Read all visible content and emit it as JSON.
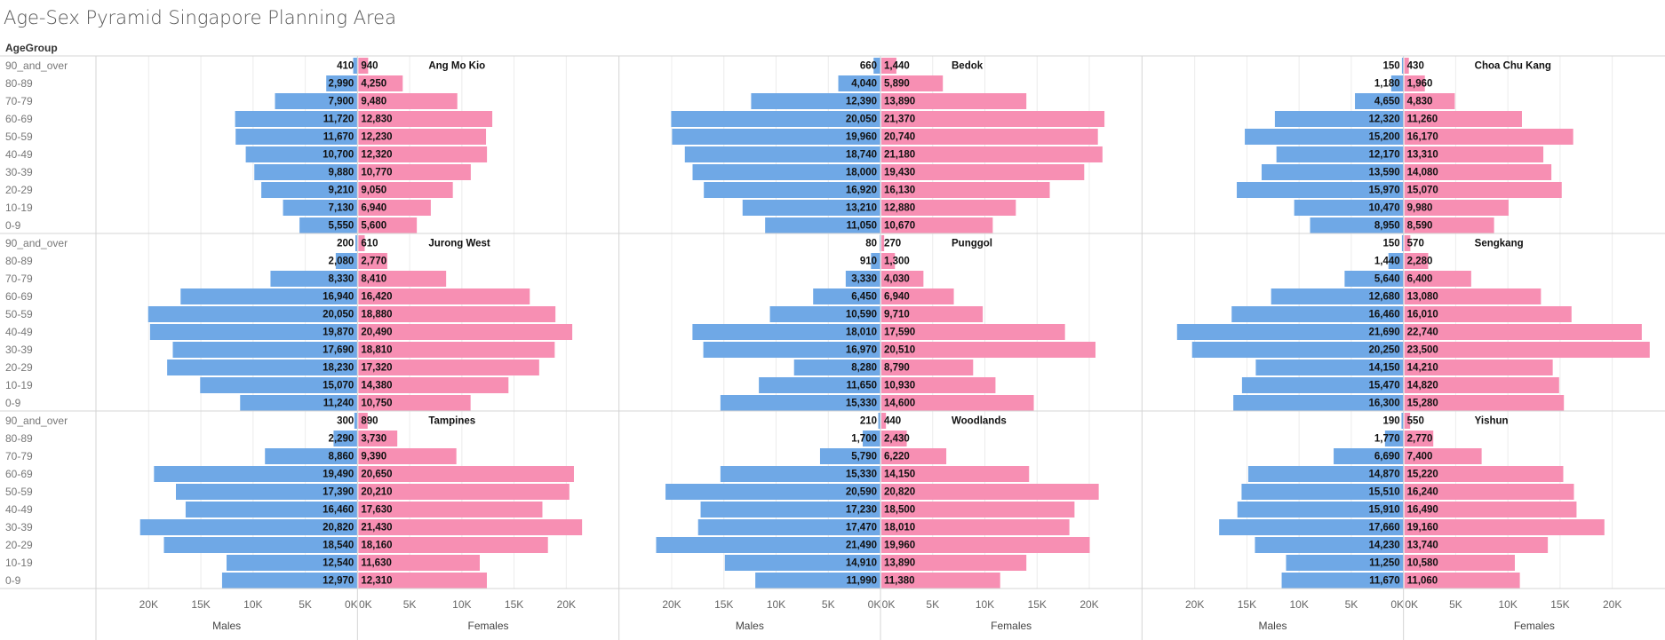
{
  "title": "Age-Sex Pyramid Singapore Planning Area",
  "row_header": "AgeGroup",
  "colors": {
    "males": "#6fa8e6",
    "females": "#f78fb3",
    "gridline": "#ececec",
    "border": "#d4d4d4"
  },
  "chart_data": {
    "type": "bar",
    "orientation": "horizontal",
    "age_groups": [
      "90_and_over",
      "80-89",
      "70-79",
      "60-69",
      "50-59",
      "40-49",
      "30-39",
      "20-29",
      "10-19",
      "0-9"
    ],
    "axis_ticks": {
      "males": [
        "20K",
        "15K",
        "10K",
        "5K",
        "0K"
      ],
      "females": [
        "0K",
        "5K",
        "10K",
        "15K",
        "20K"
      ]
    },
    "tick_values": {
      "males": [
        20000,
        15000,
        10000,
        5000,
        0
      ],
      "females": [
        0,
        5000,
        10000,
        15000,
        20000
      ]
    },
    "xlim": [
      0,
      20000
    ],
    "x_axis_titles": {
      "males": "Males",
      "females": "Females"
    },
    "panels": [
      {
        "area": "Ang Mo Kio",
        "males_labels": [
          "410",
          "2,990",
          "7,900",
          "11,720",
          "11,670",
          "10,700",
          "9,880",
          "9,210",
          "7,130",
          "5,550"
        ],
        "males": [
          410,
          2990,
          7900,
          11720,
          11670,
          10700,
          9880,
          9210,
          7130,
          5550
        ],
        "females_labels": [
          "940",
          "4,250",
          "9,480",
          "12,830",
          "12,230",
          "12,320",
          "10,770",
          "9,050",
          "6,940",
          "5,600"
        ],
        "females": [
          940,
          4250,
          9480,
          12830,
          12230,
          12320,
          10770,
          9050,
          6940,
          5600
        ]
      },
      {
        "area": "Bedok",
        "males_labels": [
          "660",
          "4,040",
          "12,390",
          "20,050",
          "19,960",
          "18,740",
          "18,000",
          "16,920",
          "13,210",
          "11,050"
        ],
        "males": [
          660,
          4040,
          12390,
          20050,
          19960,
          18740,
          18000,
          16920,
          13210,
          11050
        ],
        "females_labels": [
          "1,440",
          "5,890",
          "13,890",
          "21,370",
          "20,740",
          "21,180",
          "19,430",
          "16,130",
          "12,880",
          "10,670"
        ],
        "females": [
          1440,
          5890,
          13890,
          21370,
          20740,
          21180,
          19430,
          16130,
          12880,
          10670
        ]
      },
      {
        "area": "Choa Chu Kang",
        "males_labels": [
          "150",
          "1,180",
          "4,650",
          "12,320",
          "15,200",
          "12,170",
          "13,590",
          "15,970",
          "10,470",
          "8,950"
        ],
        "males": [
          150,
          1180,
          4650,
          12320,
          15200,
          12170,
          13590,
          15970,
          10470,
          8950
        ],
        "females_labels": [
          "430",
          "1,960",
          "4,830",
          "11,260",
          "16,170",
          "13,310",
          "14,080",
          "15,070",
          "9,980",
          "8,590"
        ],
        "females": [
          430,
          1960,
          4830,
          11260,
          16170,
          13310,
          14080,
          15070,
          9980,
          8590
        ]
      },
      {
        "area": "Jurong West",
        "males_labels": [
          "200",
          "2,080",
          "8,330",
          "16,940",
          "20,050",
          "19,870",
          "17,690",
          "18,230",
          "15,070",
          "11,240"
        ],
        "males": [
          200,
          2080,
          8330,
          16940,
          20050,
          19870,
          17690,
          18230,
          15070,
          11240
        ],
        "females_labels": [
          "610",
          "2,770",
          "8,410",
          "16,420",
          "18,880",
          "20,490",
          "18,810",
          "17,320",
          "14,380",
          "10,750"
        ],
        "females": [
          610,
          2770,
          8410,
          16420,
          18880,
          20490,
          18810,
          17320,
          14380,
          10750
        ]
      },
      {
        "area": "Punggol",
        "males_labels": [
          "80",
          "910",
          "3,330",
          "6,450",
          "10,590",
          "18,010",
          "16,970",
          "8,280",
          "11,650",
          "15,330"
        ],
        "males": [
          80,
          910,
          3330,
          6450,
          10590,
          18010,
          16970,
          8280,
          11650,
          15330
        ],
        "females_labels": [
          "270",
          "1,300",
          "4,030",
          "6,940",
          "9,710",
          "17,590",
          "20,510",
          "8,790",
          "10,930",
          "14,600"
        ],
        "females": [
          270,
          1300,
          4030,
          6940,
          9710,
          17590,
          20510,
          8790,
          10930,
          14600
        ]
      },
      {
        "area": "Sengkang",
        "males_labels": [
          "150",
          "1,440",
          "5,640",
          "12,680",
          "16,460",
          "21,690",
          "20,250",
          "14,150",
          "15,470",
          "16,300"
        ],
        "males": [
          150,
          1440,
          5640,
          12680,
          16460,
          21690,
          20250,
          14150,
          15470,
          16300
        ],
        "females_labels": [
          "570",
          "2,280",
          "6,400",
          "13,080",
          "16,010",
          "22,740",
          "23,500",
          "14,210",
          "14,820",
          "15,280"
        ],
        "females": [
          570,
          2280,
          6400,
          13080,
          16010,
          22740,
          23500,
          14210,
          14820,
          15280
        ]
      },
      {
        "area": "Tampines",
        "males_labels": [
          "300",
          "2,290",
          "8,860",
          "19,490",
          "17,390",
          "16,460",
          "20,820",
          "18,540",
          "12,540",
          "12,970"
        ],
        "males": [
          300,
          2290,
          8860,
          19490,
          17390,
          16460,
          20820,
          18540,
          12540,
          12970
        ],
        "females_labels": [
          "890",
          "3,730",
          "9,390",
          "20,650",
          "20,210",
          "17,630",
          "21,430",
          "18,160",
          "11,630",
          "12,310"
        ],
        "females": [
          890,
          3730,
          9390,
          20650,
          20210,
          17630,
          21430,
          18160,
          11630,
          12310
        ]
      },
      {
        "area": "Woodlands",
        "males_labels": [
          "210",
          "1,700",
          "5,790",
          "15,330",
          "20,590",
          "17,230",
          "17,470",
          "21,490",
          "14,910",
          "11,990"
        ],
        "males": [
          210,
          1700,
          5790,
          15330,
          20590,
          17230,
          17470,
          21490,
          14910,
          11990
        ],
        "females_labels": [
          "440",
          "2,430",
          "6,220",
          "14,150",
          "20,820",
          "18,500",
          "18,010",
          "19,960",
          "13,890",
          "11,380"
        ],
        "females": [
          440,
          2430,
          6220,
          14150,
          20820,
          18500,
          18010,
          19960,
          13890,
          11380
        ]
      },
      {
        "area": "Yishun",
        "males_labels": [
          "190",
          "1,770",
          "6,690",
          "14,870",
          "15,510",
          "15,910",
          "17,660",
          "14,230",
          "11,250",
          "11,670"
        ],
        "males": [
          190,
          1770,
          6690,
          14870,
          15510,
          15910,
          17660,
          14230,
          11250,
          11670
        ],
        "females_labels": [
          "550",
          "2,770",
          "7,400",
          "15,220",
          "16,240",
          "16,490",
          "19,160",
          "13,740",
          "10,580",
          "11,060"
        ],
        "females": [
          550,
          2770,
          7400,
          15220,
          16240,
          16490,
          19160,
          13740,
          10580,
          11060
        ]
      }
    ]
  }
}
